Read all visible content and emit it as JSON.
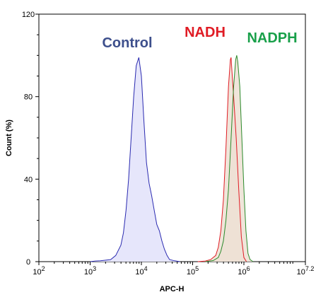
{
  "chart_data": {
    "type": "area",
    "xlabel": "APC-H",
    "ylabel": "Count (%)",
    "x_scale": "log10",
    "xlim": [
      100,
      15848931
    ],
    "ylim": [
      0,
      120
    ],
    "grid": false,
    "x_ticks": [
      {
        "value": 100,
        "base": "10",
        "exp": "2"
      },
      {
        "value": 1000,
        "base": "10",
        "exp": "3"
      },
      {
        "value": 10000,
        "base": "10",
        "exp": "4"
      },
      {
        "value": 100000,
        "base": "10",
        "exp": "5"
      },
      {
        "value": 1000000,
        "base": "10",
        "exp": "6"
      },
      {
        "value": 15848931,
        "base": "10",
        "exp": "7.2"
      }
    ],
    "y_ticks": [
      {
        "value": 0,
        "label": "0"
      },
      {
        "value": 40,
        "label": "40"
      },
      {
        "value": 80,
        "label": "80"
      },
      {
        "value": 120,
        "label": "120"
      }
    ],
    "series": [
      {
        "name": "Control",
        "color": "#3d4f8c",
        "fill": "#e6e6fb",
        "stroke": "#2a2ab0",
        "x": [
          1000,
          1259,
          1585,
          2512,
          3162,
          3981,
          4467,
          5012,
          5623,
          6310,
          7079,
          7943,
          8913,
          10000,
          11220,
          12589,
          14125,
          15849,
          17783,
          19953,
          22387,
          25119,
          28184,
          31623,
          35481,
          44668,
          56234
        ],
        "y": [
          0,
          0.3,
          0.4,
          1,
          3,
          8,
          14,
          25,
          40,
          60,
          80,
          95,
          99,
          90,
          68,
          48,
          38,
          32,
          25,
          18,
          15,
          10,
          6,
          3,
          1,
          0.4,
          0
        ]
      },
      {
        "name": "NADH",
        "color": "#e01b24",
        "fill": "#ede0d4",
        "stroke": "#e01b24",
        "x": [
          125893,
          177828,
          223872,
          281838,
          316228,
          354813,
          398107,
          446684,
          501187,
          545570,
          562341,
          575440,
          630957,
          707946,
          794328,
          891251,
          1000000,
          1122018
        ],
        "y": [
          0,
          0.3,
          1,
          3,
          7,
          15,
          30,
          55,
          85,
          98,
          99,
          95,
          80,
          60,
          35,
          12,
          2,
          0
        ]
      },
      {
        "name": "NADPH",
        "color": "#19a04a",
        "fill": "#ede0d4",
        "stroke": "#2a8a2a",
        "x": [
          177828,
          251189,
          316228,
          354813,
          398107,
          446684,
          501187,
          562341,
          630957,
          691831,
          724436,
          758578,
          831764,
          912011,
          1000000,
          1096478,
          1202264,
          1318257,
          1513561
        ],
        "y": [
          0,
          0.5,
          2,
          5,
          10,
          20,
          35,
          60,
          85,
          98,
          100,
          97,
          85,
          60,
          35,
          15,
          4,
          1,
          0
        ]
      }
    ]
  }
}
